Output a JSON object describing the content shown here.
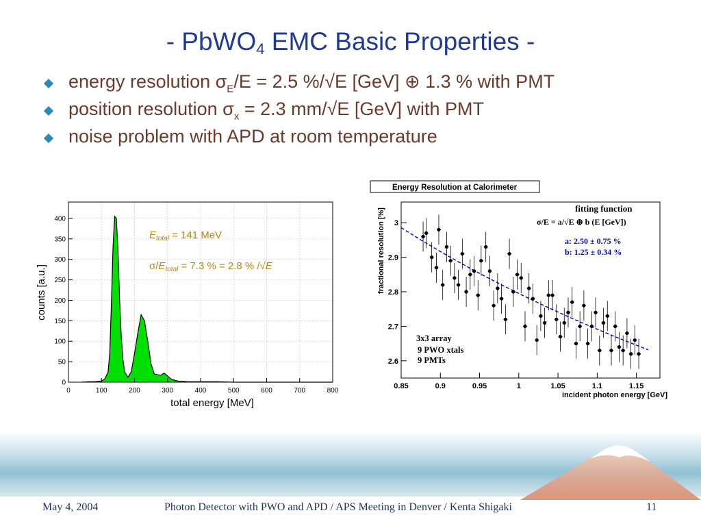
{
  "slide": {
    "title_main": "- PbWO",
    "title_sub": "4",
    "title_rest": " EMC Basic Properties -",
    "bullets": [
      {
        "pre": "energy resolution σ",
        "sub": "E",
        "post": "/E = 2.5 %/√E [GeV] ⊕ 1.3 % with PMT"
      },
      {
        "pre": "position resolution σ",
        "sub": "x",
        "post": " = 2.3 mm/√E [GeV] with PMT"
      },
      {
        "pre": "noise problem with APD at room temperature",
        "sub": "",
        "post": ""
      }
    ],
    "colors": {
      "title": "#1f3a93",
      "bullet_text": "#6b3a2a",
      "bullet_marker": "#2a8ab8",
      "histogram_fill": "#00e000",
      "annotation": "#b8860b",
      "fit_line": "#0000cc"
    }
  },
  "footer": {
    "date": "May 4, 2004",
    "center": "Photon Detector with PWO and APD / APS Meeting in Denver / Kenta Shigaki",
    "page": "11"
  },
  "chart_data": [
    {
      "type": "area",
      "title": "",
      "xlabel": "total energy [MeV]",
      "ylabel": "counts [a.u.]",
      "xlim": [
        0,
        800
      ],
      "ylim": [
        0,
        440
      ],
      "xticks": [
        0,
        100,
        200,
        300,
        400,
        500,
        600,
        700,
        800
      ],
      "yticks": [
        0,
        50,
        100,
        150,
        200,
        250,
        300,
        350,
        400
      ],
      "grid": true,
      "annotations": {
        "line1_var": "E",
        "line1_sub": "total",
        "line1_rest": " = 141 MeV",
        "line2_pre": "σ/",
        "line2_var": "E",
        "line2_sub": "total",
        "line2_rest": " = 7.3 % = 2.8 % /√",
        "line2_end": "E"
      },
      "x": [
        40,
        60,
        80,
        100,
        110,
        120,
        125,
        130,
        135,
        140,
        145,
        150,
        155,
        160,
        165,
        170,
        180,
        190,
        200,
        210,
        220,
        230,
        240,
        250,
        260,
        270,
        280,
        290,
        300,
        310,
        320,
        330,
        340,
        350,
        360,
        380,
        400,
        450,
        500,
        550,
        600,
        650,
        700,
        750,
        800
      ],
      "y": [
        0,
        1,
        1,
        3,
        8,
        25,
        70,
        190,
        330,
        405,
        400,
        320,
        200,
        110,
        55,
        25,
        12,
        25,
        70,
        120,
        165,
        150,
        100,
        45,
        20,
        18,
        17,
        22,
        15,
        8,
        5,
        3,
        2,
        2,
        1,
        1,
        1,
        1,
        0,
        0,
        0,
        0,
        0,
        0,
        0
      ]
    },
    {
      "type": "scatter",
      "title": "Energy Resolution at Calorimeter",
      "xlabel": "incident photon energy [GeV]",
      "ylabel": "fractional resolution [%]",
      "xlim": [
        0.85,
        1.18
      ],
      "ylim": [
        2.55,
        3.06
      ],
      "xticks": [
        0.85,
        0.9,
        0.95,
        1,
        1.05,
        1.1,
        1.15
      ],
      "xtick_labels": [
        "0.85",
        "0.9",
        "0.95",
        "1",
        "1.05",
        "1.1",
        "1.15"
      ],
      "yticks": [
        2.6,
        2.7,
        2.8,
        2.9,
        3
      ],
      "ytick_labels": [
        "2.6",
        "2.7",
        "2.8",
        "2.9",
        "3"
      ],
      "fit_box": {
        "title": "fitting function",
        "formula": "σ/E = a/√E ⊕ b  (E [GeV])",
        "a": "a: 2.50 ±  0.75 %",
        "b": "b: 1.25 ±  0.34 %"
      },
      "note": {
        "line1": "3x3 array",
        "line2": "9 PWO xtals",
        "line3": "9 PMTs"
      },
      "fit": {
        "a": 2.5,
        "b": 1.25
      },
      "x": [
        0.878,
        0.882,
        0.889,
        0.895,
        0.898,
        0.903,
        0.908,
        0.913,
        0.918,
        0.923,
        0.928,
        0.933,
        0.938,
        0.943,
        0.948,
        0.952,
        0.958,
        0.963,
        0.968,
        0.973,
        0.978,
        0.983,
        0.988,
        0.993,
        0.998,
        1.003,
        1.008,
        1.013,
        1.018,
        1.023,
        1.028,
        1.033,
        1.038,
        1.043,
        1.048,
        1.053,
        1.058,
        1.063,
        1.068,
        1.073,
        1.078,
        1.083,
        1.088,
        1.093,
        1.098,
        1.103,
        1.108,
        1.113,
        1.118,
        1.123,
        1.128,
        1.133,
        1.138,
        1.143,
        1.148,
        1.153
      ],
      "y": [
        2.96,
        2.97,
        2.9,
        2.87,
        2.98,
        2.82,
        2.93,
        2.89,
        2.84,
        2.82,
        2.91,
        2.8,
        2.85,
        2.86,
        2.79,
        2.89,
        2.93,
        2.86,
        2.76,
        2.81,
        2.78,
        2.72,
        2.91,
        2.8,
        2.85,
        2.84,
        2.7,
        2.81,
        2.78,
        2.66,
        2.73,
        2.71,
        2.79,
        2.79,
        2.72,
        2.67,
        2.71,
        2.74,
        2.77,
        2.65,
        2.7,
        2.76,
        2.65,
        2.7,
        2.74,
        2.63,
        2.71,
        2.73,
        2.63,
        2.7,
        2.64,
        2.63,
        2.68,
        2.62,
        2.66,
        2.62
      ]
    }
  ]
}
